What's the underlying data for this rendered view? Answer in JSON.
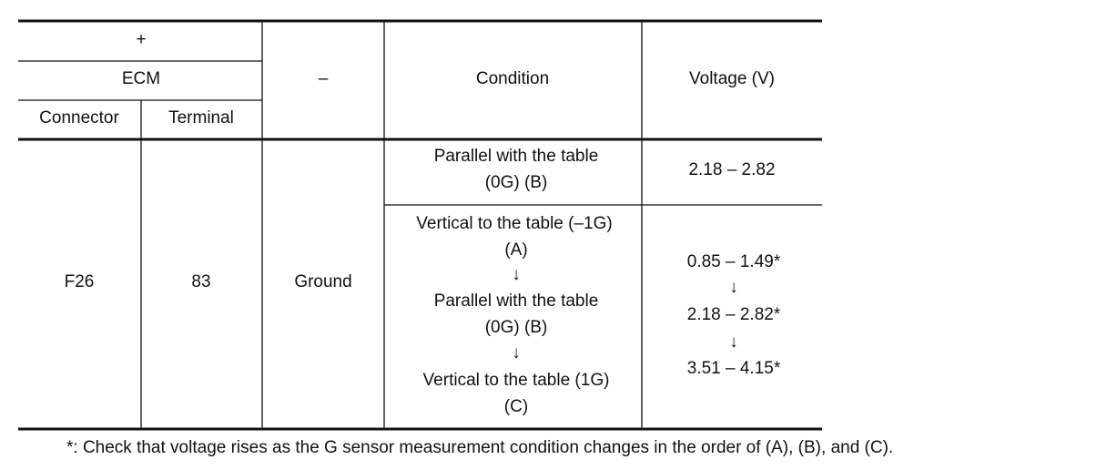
{
  "header": {
    "plus": "+",
    "ecm": "ECM",
    "connector": "Connector",
    "terminal": "Terminal",
    "minus": "–",
    "condition": "Condition",
    "voltage": "Voltage (V)"
  },
  "row": {
    "connector": "F26",
    "terminal": "83",
    "minus": "Ground",
    "conditions": [
      {
        "condition": [
          "Parallel with the table",
          "(0G) (B)"
        ],
        "voltage": [
          "2.18 – 2.82"
        ]
      },
      {
        "condition": [
          "Vertical to the table (–1G)",
          "(A)",
          "↓",
          "Parallel with the table",
          "(0G) (B)",
          "↓",
          "Vertical to the table (1G)",
          "(C)"
        ],
        "voltage": [
          "0.85 – 1.49*",
          "↓",
          "2.18 – 2.82*",
          "↓",
          "3.51 – 4.15*"
        ]
      }
    ]
  },
  "footnote": "*: Check that voltage rises as the G sensor measurement condition changes in the order of (A), (B), and (C)."
}
